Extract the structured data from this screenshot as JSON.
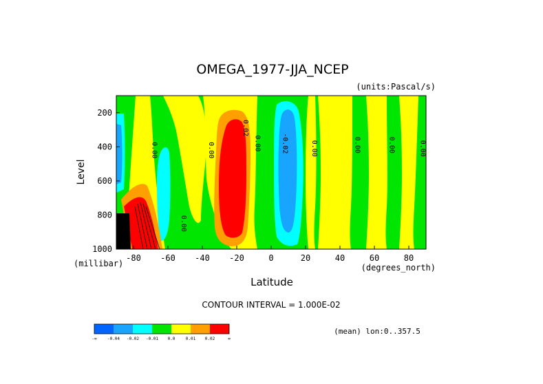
{
  "chart_data": {
    "type": "heatmap",
    "title": "OMEGA_1977-JJA_NCEP",
    "units_label": "(units:Pascal/s)",
    "xlabel": "Latitude",
    "ylabel": "Level",
    "y_unit_label": "(millibar)",
    "x_unit_label": "(degrees_north)",
    "xlim": [
      -90,
      90
    ],
    "ylim": [
      1000,
      100
    ],
    "x_ticks": [
      -80,
      -60,
      -40,
      -20,
      0,
      20,
      40,
      60,
      80
    ],
    "x_tick_labels": [
      "-80",
      "-60",
      "-40",
      "-20",
      "0",
      "20",
      "40",
      "60",
      "80"
    ],
    "y_ticks": [
      200,
      400,
      600,
      800,
      1000
    ],
    "y_tick_labels": [
      "200",
      "400",
      "600",
      "800",
      "1000"
    ],
    "contour_interval_text": "CONTOUR INTERVAL = 1.000E-02",
    "mean_text": "(mean) lon:0..357.5",
    "contour_labels": [
      {
        "text": "0.00",
        "lat": -69,
        "lev": 420
      },
      {
        "text": "0.00",
        "lat": -36,
        "lev": 420
      },
      {
        "text": "0.02",
        "lat": -16,
        "lev": 290
      },
      {
        "text": "0.00",
        "lat": -9,
        "lev": 380
      },
      {
        "text": "-0.02",
        "lat": 7,
        "lev": 380
      },
      {
        "text": "0.00",
        "lat": 24,
        "lev": 410
      },
      {
        "text": "0.00",
        "lat": 49,
        "lev": 390
      },
      {
        "text": "0.00",
        "lat": 69,
        "lev": 390
      },
      {
        "text": "0.00",
        "lat": 87,
        "lev": 410
      },
      {
        "text": "0.00",
        "lat": -52,
        "lev": 850
      }
    ],
    "colorbar": {
      "colors": [
        "#0064ff",
        "#18a5ff",
        "#00ffff",
        "#00e600",
        "#ffff00",
        "#ffa000",
        "#ff0000"
      ],
      "labels": [
        "-∞",
        "-0.04",
        "-0.02",
        "-0.01",
        "0.0",
        "0.01",
        "0.02",
        "∞"
      ]
    },
    "colors": {
      "strong_neg": "#0064ff",
      "neg": "#18a5ff",
      "weak_neg": "#00ffff",
      "near_zero_neg": "#00e600",
      "near_zero_pos": "#ffff00",
      "pos": "#ffa000",
      "strong_pos": "#ff0000",
      "below_ground": "#000000"
    }
  }
}
